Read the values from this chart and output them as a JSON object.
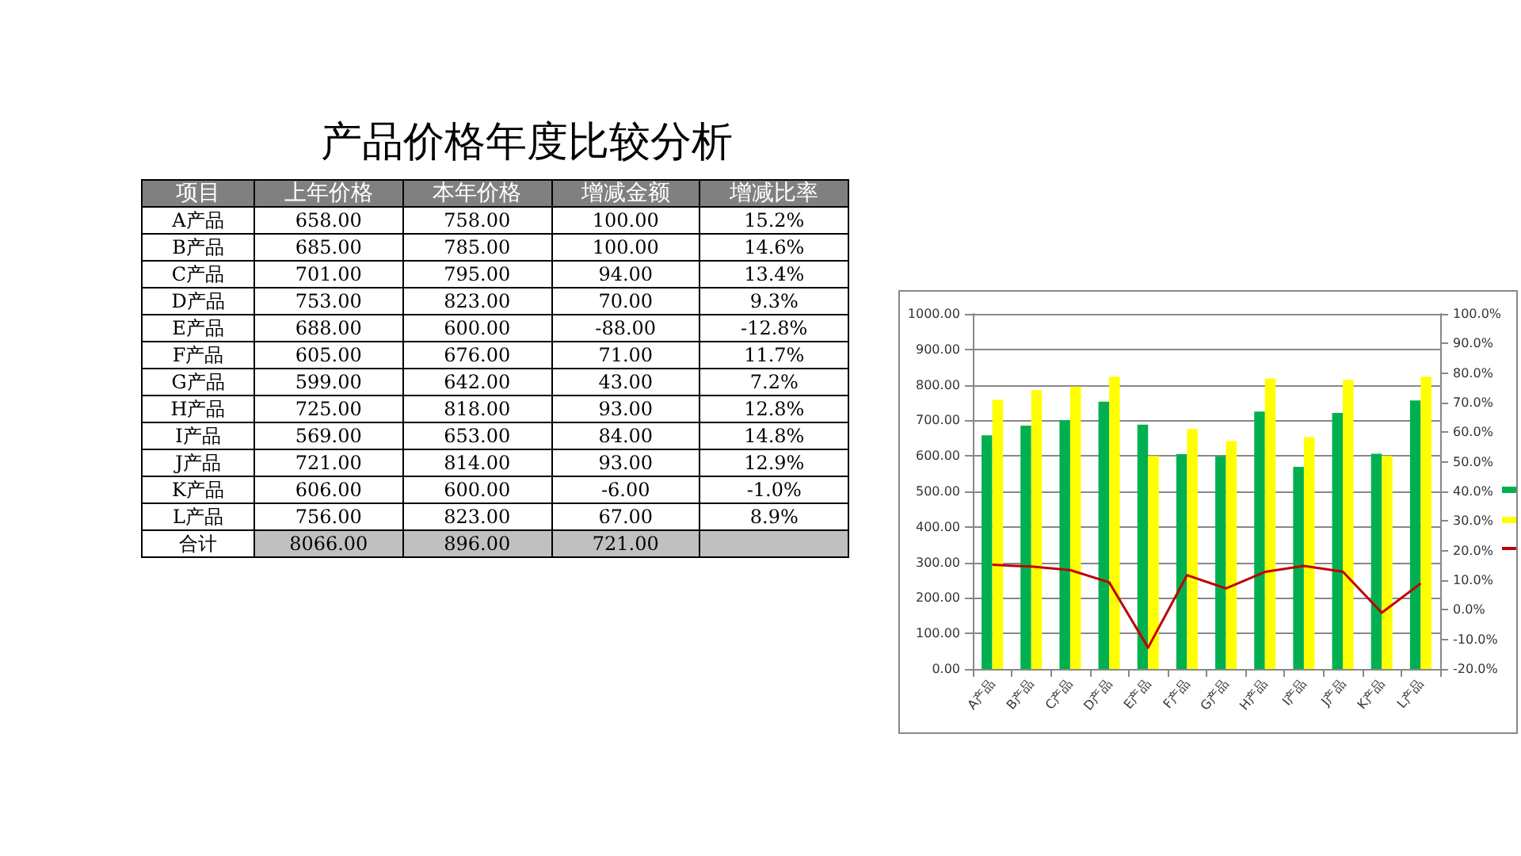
{
  "chart_data": [
    {
      "type": "other",
      "title": "产品价格年度比较分析",
      "annotations": [
        "项目",
        "上年价格",
        "本年价格",
        "增减金额",
        "增减比率",
        "A产品",
        "658.00",
        "758.00",
        "100.00",
        "15.2%",
        "B产品",
        "685.00",
        "785.00",
        "100.00",
        "14.6%",
        "C产品",
        "701.00",
        "795.00",
        "94.00",
        "13.4%",
        "D产品",
        "753.00",
        "823.00",
        "70.00",
        "9.3%",
        "E产品",
        "688.00",
        "600.00",
        "-88.00",
        "-12.8%",
        "F产品",
        "605.00",
        "676.00",
        "71.00",
        "11.7%",
        "G产品",
        "599.00",
        "642.00",
        "43.00",
        "7.2%",
        "H产品",
        "725.00",
        "818.00",
        "93.00",
        "12.8%",
        "I产品",
        "569.00",
        "653.00",
        "84.00",
        "14.8%",
        "J产品",
        "721.00",
        "814.00",
        "93.00",
        "12.9%",
        "K产品",
        "606.00",
        "600.00",
        "-6.00",
        "-1.0%",
        "L产品",
        "756.00",
        "823.00",
        "67.00",
        "8.9%",
        "合计",
        "8066.00",
        "896.00",
        "721.00"
      ]
    },
    {
      "type": "bar",
      "categories": [
        "A产品",
        "B产品",
        "C产品",
        "D产品",
        "E产品",
        "F产品",
        "G产品",
        "H产品",
        "I产品",
        "J产品",
        "K产品",
        "L产品"
      ],
      "series": [
        {
          "color": "#00b050",
          "values": [
            658,
            685,
            701,
            753,
            688,
            605,
            599,
            725,
            569,
            721,
            606,
            756
          ]
        },
        {
          "color": "#ffff00",
          "values": [
            758,
            785,
            795,
            823,
            600,
            676,
            642,
            818,
            653,
            814,
            600,
            823
          ]
        },
        {
          "type": "line",
          "axis": "y2",
          "color": "#c00000",
          "values": [
            15.2,
            14.6,
            13.4,
            9.3,
            -12.8,
            11.7,
            7.2,
            12.8,
            14.8,
            12.9,
            -1.0,
            8.9
          ]
        }
      ],
      "ylim": [
        0,
        1000
      ],
      "yticks": [
        {
          "value": 0,
          "label": "0.00"
        },
        {
          "value": 100,
          "label": "100.00"
        },
        {
          "value": 200,
          "label": "200.00"
        },
        {
          "value": 300,
          "label": "300.00"
        },
        {
          "value": 400,
          "label": "400.00"
        },
        {
          "value": 500,
          "label": "500.00"
        },
        {
          "value": 600,
          "label": "600.00"
        },
        {
          "value": 700,
          "label": "700.00"
        },
        {
          "value": 800,
          "label": "800.00"
        },
        {
          "value": 900,
          "label": "900.00"
        },
        {
          "value": 1000,
          "label": "1000.00"
        }
      ],
      "y2lim": [
        -20,
        100
      ],
      "y2ticks": [
        {
          "value": -20,
          "label": "-20.0%"
        },
        {
          "value": -10,
          "label": "-10.0%"
        },
        {
          "value": 0,
          "label": "0.0%"
        },
        {
          "value": 10,
          "label": "10.0%"
        },
        {
          "value": 20,
          "label": "20.0%"
        },
        {
          "value": 30,
          "label": "30.0%"
        },
        {
          "value": 40,
          "label": "40.0%"
        },
        {
          "value": 50,
          "label": "50.0%"
        },
        {
          "value": 60,
          "label": "60.0%"
        },
        {
          "value": 70,
          "label": "70.0%"
        },
        {
          "value": 80,
          "label": "80.0%"
        },
        {
          "value": 90,
          "label": "90.0%"
        },
        {
          "value": 100,
          "label": "100.0%"
        }
      ],
      "grid": "y",
      "marker": "none"
    }
  ]
}
